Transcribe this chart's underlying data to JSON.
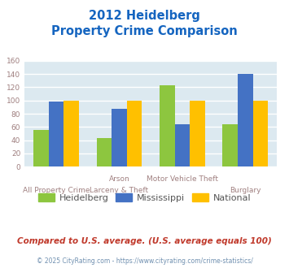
{
  "title_line1": "2012 Heidelberg",
  "title_line2": "Property Crime Comparison",
  "cat_labels_top": [
    "",
    "Arson",
    "Motor Vehicle Theft",
    ""
  ],
  "cat_labels_bot": [
    "All Property Crime",
    "Larceny & Theft",
    "",
    "Burglary"
  ],
  "heidelberg": [
    55,
    43,
    123,
    64
  ],
  "mississippi": [
    98,
    88,
    64,
    140
  ],
  "national": [
    100,
    100,
    100,
    100
  ],
  "bar_colors": {
    "heidelberg": "#8dc63f",
    "mississippi": "#4472c4",
    "national": "#ffc000"
  },
  "ylim": [
    0,
    160
  ],
  "yticks": [
    0,
    20,
    40,
    60,
    80,
    100,
    120,
    140,
    160
  ],
  "plot_bg": "#dce9f0",
  "grid_color": "#ffffff",
  "title_color": "#1565c0",
  "axis_label_color": "#a08080",
  "legend_labels": [
    "Heidelberg",
    "Mississippi",
    "National"
  ],
  "legend_label_color": "#555555",
  "footnote": "Compared to U.S. average. (U.S. average equals 100)",
  "footnote_color": "#c0392b",
  "copyright": "© 2025 CityRating.com - https://www.cityrating.com/crime-statistics/",
  "copyright_color": "#7090b0"
}
